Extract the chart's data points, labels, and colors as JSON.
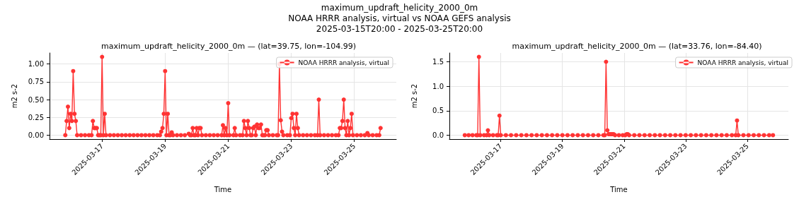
{
  "chart_data": [
    {
      "type": "line",
      "title": "maximum_updraft_helicity_2000_0m — (lat=39.75, lon=-104.99)",
      "annotations": [
        "maximum_updraft_helicity_2000_0m",
        "NOAA HRRR analysis, virtual vs NOAA GEFS analysis",
        "2025-03-15T20:00 - 2025-03-25T20:00"
      ],
      "xlabel": "Time",
      "ylabel": "m2 s-2",
      "legend": "top right",
      "grid": true,
      "marker": "circle",
      "line_style": "solid",
      "xlim": [
        "2025-03-15T08:00",
        "2025-03-26T08:00"
      ],
      "xticks": [
        "2025-03-17",
        "2025-03-19",
        "2025-03-21",
        "2025-03-23",
        "2025-03-25"
      ],
      "ylim": [
        -0.055,
        1.155
      ],
      "yticks": [
        {
          "value": 0,
          "label": "0.00"
        },
        {
          "value": 0.25,
          "label": "0.25"
        },
        {
          "value": 0.5,
          "label": "0.50"
        },
        {
          "value": 0.75,
          "label": "0.75"
        },
        {
          "value": 1,
          "label": "1.00"
        }
      ],
      "x": [
        "2025-03-15T20:00",
        "2025-03-15T21:00",
        "2025-03-15T22:00",
        "2025-03-15T23:00",
        "2025-03-16T00:00",
        "2025-03-16T01:00",
        "2025-03-16T02:00",
        "2025-03-16T03:00",
        "2025-03-16T04:00",
        "2025-03-16T05:00",
        "2025-03-16T08:00",
        "2025-03-16T11:00",
        "2025-03-16T14:00",
        "2025-03-16T16:00",
        "2025-03-16T17:00",
        "2025-03-16T18:00",
        "2025-03-16T19:00",
        "2025-03-16T20:00",
        "2025-03-16T21:00",
        "2025-03-16T22:00",
        "2025-03-16T23:00",
        "2025-03-17T00:00",
        "2025-03-17T01:00",
        "2025-03-17T02:00",
        "2025-03-17T03:00",
        "2025-03-17T06:00",
        "2025-03-17T09:00",
        "2025-03-17T12:00",
        "2025-03-17T15:00",
        "2025-03-17T18:00",
        "2025-03-17T21:00",
        "2025-03-18T00:00",
        "2025-03-18T03:00",
        "2025-03-18T06:00",
        "2025-03-18T09:00",
        "2025-03-18T12:00",
        "2025-03-18T15:00",
        "2025-03-18T18:00",
        "2025-03-18T20:00",
        "2025-03-18T21:00",
        "2025-03-18T22:00",
        "2025-03-18T23:00",
        "2025-03-19T00:00",
        "2025-03-19T01:00",
        "2025-03-19T02:00",
        "2025-03-19T03:00",
        "2025-03-19T04:00",
        "2025-03-19T05:00",
        "2025-03-19T06:00",
        "2025-03-19T09:00",
        "2025-03-19T12:00",
        "2025-03-19T15:00",
        "2025-03-19T18:00",
        "2025-03-19T19:00",
        "2025-03-19T20:00",
        "2025-03-19T21:00",
        "2025-03-19T22:00",
        "2025-03-19T23:00",
        "2025-03-20T00:00",
        "2025-03-20T01:00",
        "2025-03-20T02:00",
        "2025-03-20T03:00",
        "2025-03-20T04:00",
        "2025-03-20T07:00",
        "2025-03-20T10:00",
        "2025-03-20T13:00",
        "2025-03-20T16:00",
        "2025-03-20T19:00",
        "2025-03-20T20:00",
        "2025-03-20T21:00",
        "2025-03-20T22:00",
        "2025-03-20T23:00",
        "2025-03-21T00:00",
        "2025-03-21T01:00",
        "2025-03-21T04:00",
        "2025-03-21T05:00",
        "2025-03-21T06:00",
        "2025-03-21T09:00",
        "2025-03-21T11:00",
        "2025-03-21T12:00",
        "2025-03-21T13:00",
        "2025-03-21T14:00",
        "2025-03-21T15:00",
        "2025-03-21T16:00",
        "2025-03-21T17:00",
        "2025-03-21T18:00",
        "2025-03-21T19:00",
        "2025-03-21T20:00",
        "2025-03-21T21:00",
        "2025-03-21T22:00",
        "2025-03-21T23:00",
        "2025-03-22T00:00",
        "2025-03-22T01:00",
        "2025-03-22T02:00",
        "2025-03-22T03:00",
        "2025-03-22T04:00",
        "2025-03-22T05:00",
        "2025-03-22T06:00",
        "2025-03-22T07:00",
        "2025-03-22T10:00",
        "2025-03-22T13:00",
        "2025-03-22T14:00",
        "2025-03-22T15:00",
        "2025-03-22T16:00",
        "2025-03-22T17:00",
        "2025-03-22T18:00",
        "2025-03-22T21:00",
        "2025-03-22T23:00",
        "2025-03-23T00:00",
        "2025-03-23T01:00",
        "2025-03-23T02:00",
        "2025-03-23T03:00",
        "2025-03-23T04:00",
        "2025-03-23T05:00",
        "2025-03-23T06:00",
        "2025-03-23T09:00",
        "2025-03-23T12:00",
        "2025-03-23T15:00",
        "2025-03-23T18:00",
        "2025-03-23T20:00",
        "2025-03-23T21:00",
        "2025-03-23T22:00",
        "2025-03-24T01:00",
        "2025-03-24T04:00",
        "2025-03-24T07:00",
        "2025-03-24T10:00",
        "2025-03-24T12:00",
        "2025-03-24T13:00",
        "2025-03-24T14:00",
        "2025-03-24T15:00",
        "2025-03-24T16:00",
        "2025-03-24T17:00",
        "2025-03-24T18:00",
        "2025-03-24T19:00",
        "2025-03-24T20:00",
        "2025-03-24T21:00",
        "2025-03-24T22:00",
        "2025-03-24T23:00",
        "2025-03-25T02:00",
        "2025-03-25T05:00",
        "2025-03-25T08:00",
        "2025-03-25T10:00",
        "2025-03-25T11:00",
        "2025-03-25T14:00",
        "2025-03-25T17:00",
        "2025-03-25T19:00",
        "2025-03-25T20:00"
      ],
      "series": [
        {
          "name": "NOAA HRRR analysis, virtual",
          "color": "#ff3333",
          "values": [
            0,
            0.2,
            0.4,
            0.1,
            0.3,
            0.2,
            0.9,
            0.3,
            0.2,
            0,
            0,
            0,
            0,
            0,
            0.2,
            0.1,
            0.1,
            0.1,
            0,
            0,
            0,
            1.1,
            0,
            0.3,
            0,
            0,
            0,
            0,
            0,
            0,
            0,
            0,
            0,
            0,
            0,
            0,
            0,
            0,
            0,
            0.05,
            0.1,
            0.3,
            0.9,
            0,
            0.3,
            0,
            0,
            0.04,
            0,
            0,
            0,
            0,
            0.02,
            0,
            0,
            0.1,
            0,
            0,
            0.1,
            0,
            0.1,
            0.1,
            0,
            0,
            0,
            0,
            0,
            0,
            0.14,
            0,
            0.1,
            0,
            0.45,
            0,
            0,
            0.1,
            0,
            0,
            0,
            0.2,
            0.1,
            0,
            0.2,
            0.1,
            0,
            0,
            0.1,
            0.12,
            0,
            0.15,
            0.1,
            0.1,
            0.15,
            0,
            0,
            0,
            0.07,
            0.07,
            0,
            0,
            0,
            0,
            1.0,
            0.21,
            0.05,
            0,
            0,
            0,
            0.24,
            0.3,
            0.1,
            0,
            0.3,
            0.1,
            0,
            0,
            0,
            0,
            0,
            0,
            0.5,
            0,
            0,
            0,
            0,
            0,
            0,
            0.1,
            0.1,
            0.2,
            0.5,
            0.1,
            0,
            0.2,
            0,
            0.1,
            0.3,
            0,
            0,
            0,
            0,
            0.03,
            0,
            0,
            0,
            0,
            0.1
          ]
        }
      ]
    },
    {
      "type": "line",
      "title": "maximum_updraft_helicity_2000_0m — (lat=33.76, lon=-84.40)",
      "xlabel": "Time",
      "ylabel": "m2 s-2",
      "legend": "top right",
      "grid": true,
      "marker": "circle",
      "line_style": "solid",
      "xlim": [
        "2025-03-15T08:00",
        "2025-03-26T08:00"
      ],
      "xticks": [
        "2025-03-17",
        "2025-03-19",
        "2025-03-21",
        "2025-03-23",
        "2025-03-25"
      ],
      "ylim": [
        -0.08,
        1.68
      ],
      "yticks": [
        {
          "value": 0,
          "label": "0.0"
        },
        {
          "value": 0.5,
          "label": "0.5"
        },
        {
          "value": 1,
          "label": "1.0"
        },
        {
          "value": 1.5,
          "label": "1.5"
        }
      ],
      "x": [
        "2025-03-15T20:00",
        "2025-03-15T23:00",
        "2025-03-16T02:00",
        "2025-03-16T05:00",
        "2025-03-16T06:00",
        "2025-03-16T07:00",
        "2025-03-16T08:00",
        "2025-03-16T11:00",
        "2025-03-16T13:00",
        "2025-03-16T14:00",
        "2025-03-16T15:00",
        "2025-03-16T18:00",
        "2025-03-16T21:00",
        "2025-03-16T22:00",
        "2025-03-16T23:00",
        "2025-03-17T00:00",
        "2025-03-17T04:00",
        "2025-03-17T08:00",
        "2025-03-17T12:00",
        "2025-03-17T16:00",
        "2025-03-17T20:00",
        "2025-03-18T00:00",
        "2025-03-18T04:00",
        "2025-03-18T08:00",
        "2025-03-18T12:00",
        "2025-03-18T16:00",
        "2025-03-18T20:00",
        "2025-03-19T00:00",
        "2025-03-19T04:00",
        "2025-03-19T08:00",
        "2025-03-19T12:00",
        "2025-03-19T16:00",
        "2025-03-19T20:00",
        "2025-03-20T00:00",
        "2025-03-20T04:00",
        "2025-03-20T08:00",
        "2025-03-20T09:00",
        "2025-03-20T10:00",
        "2025-03-20T11:00",
        "2025-03-20T12:00",
        "2025-03-20T13:00",
        "2025-03-20T14:00",
        "2025-03-20T15:00",
        "2025-03-20T16:00",
        "2025-03-20T17:00",
        "2025-03-20T20:00",
        "2025-03-20T23:00",
        "2025-03-21T01:00",
        "2025-03-21T02:00",
        "2025-03-21T03:00",
        "2025-03-21T04:00",
        "2025-03-21T08:00",
        "2025-03-21T12:00",
        "2025-03-21T16:00",
        "2025-03-21T20:00",
        "2025-03-22T00:00",
        "2025-03-22T04:00",
        "2025-03-22T08:00",
        "2025-03-22T12:00",
        "2025-03-22T16:00",
        "2025-03-22T20:00",
        "2025-03-23T00:00",
        "2025-03-23T04:00",
        "2025-03-23T08:00",
        "2025-03-23T12:00",
        "2025-03-23T16:00",
        "2025-03-23T20:00",
        "2025-03-24T00:00",
        "2025-03-24T04:00",
        "2025-03-24T08:00",
        "2025-03-24T12:00",
        "2025-03-24T15:00",
        "2025-03-24T16:00",
        "2025-03-24T17:00",
        "2025-03-24T21:00",
        "2025-03-25T01:00",
        "2025-03-25T05:00",
        "2025-03-25T09:00",
        "2025-03-25T13:00",
        "2025-03-25T17:00",
        "2025-03-25T20:00"
      ],
      "series": [
        {
          "name": "NOAA HRRR analysis, virtual",
          "color": "#ff3333",
          "values": [
            0,
            0,
            0,
            0,
            0,
            1.6,
            0,
            0,
            0,
            0.1,
            0,
            0,
            0,
            0,
            0.4,
            0,
            0,
            0,
            0,
            0,
            0,
            0,
            0,
            0,
            0,
            0,
            0,
            0,
            0,
            0,
            0,
            0,
            0,
            0,
            0,
            0,
            0,
            1.5,
            0.1,
            0.02,
            0.02,
            0.02,
            0.02,
            0.02,
            0,
            0,
            0,
            0,
            0.02,
            0.02,
            0,
            0,
            0,
            0,
            0,
            0,
            0,
            0,
            0,
            0,
            0,
            0,
            0,
            0,
            0,
            0,
            0,
            0,
            0,
            0,
            0,
            0,
            0.3,
            0,
            0,
            0,
            0,
            0,
            0,
            0,
            0
          ]
        }
      ]
    }
  ]
}
